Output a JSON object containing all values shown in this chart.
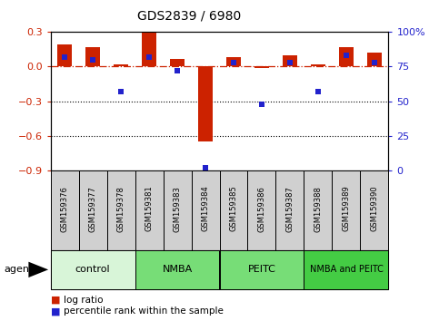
{
  "title": "GDS2839 / 6980",
  "samples": [
    "GSM159376",
    "GSM159377",
    "GSM159378",
    "GSM159381",
    "GSM159383",
    "GSM159384",
    "GSM159385",
    "GSM159386",
    "GSM159387",
    "GSM159388",
    "GSM159389",
    "GSM159390"
  ],
  "log_ratio": [
    0.19,
    0.17,
    0.02,
    0.3,
    0.07,
    -0.65,
    0.08,
    -0.01,
    0.1,
    0.02,
    0.17,
    0.12
  ],
  "percentile_rank": [
    82,
    80,
    57,
    82,
    72,
    2,
    78,
    48,
    78,
    57,
    83,
    78
  ],
  "groups": [
    {
      "label": "control",
      "start": 0,
      "end": 3,
      "color": "#d8f5d8"
    },
    {
      "label": "NMBA",
      "start": 3,
      "end": 6,
      "color": "#77dd77"
    },
    {
      "label": "PEITC",
      "start": 6,
      "end": 9,
      "color": "#77dd77"
    },
    {
      "label": "NMBA and PEITC",
      "start": 9,
      "end": 12,
      "color": "#44cc44"
    }
  ],
  "bar_color_red": "#cc2200",
  "bar_color_blue": "#2222cc",
  "ylim_left": [
    -0.9,
    0.3
  ],
  "ylim_right": [
    0,
    100
  ],
  "yticks_left": [
    0.3,
    0.0,
    -0.3,
    -0.6,
    -0.9
  ],
  "yticks_right": [
    100,
    75,
    50,
    25,
    0
  ],
  "dotted_lines": [
    -0.3,
    -0.6
  ],
  "sample_box_color": "#d0d0d0",
  "bg_color": "#ffffff"
}
